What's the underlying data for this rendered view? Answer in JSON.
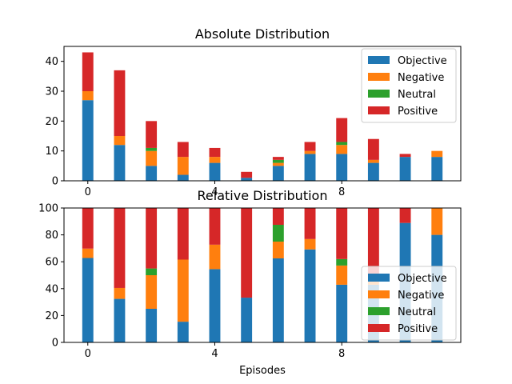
{
  "chart_data": [
    {
      "type": "bar",
      "stacked": true,
      "title": "Absolute Distribution",
      "xlabel": "",
      "ylabel": "",
      "ylim": [
        0,
        45
      ],
      "yticks": [
        0,
        10,
        20,
        30,
        40
      ],
      "xticks": [
        0,
        4,
        8
      ],
      "x": [
        0,
        1,
        2,
        3,
        4,
        5,
        6,
        7,
        8,
        9,
        10,
        11
      ],
      "legend_position": "top-right",
      "grid": false,
      "series": [
        {
          "name": "Objective",
          "color": "#1f77b4",
          "values": [
            27,
            12,
            5,
            2,
            6,
            1,
            5,
            9,
            9,
            6,
            8,
            8
          ]
        },
        {
          "name": "Negative",
          "color": "#ff7f0e",
          "values": [
            3,
            3,
            5,
            6,
            2,
            0,
            1,
            1,
            3,
            1,
            0,
            2
          ]
        },
        {
          "name": "Neutral",
          "color": "#2ca02c",
          "values": [
            0,
            0,
            1,
            0,
            0,
            0,
            1,
            0,
            1,
            0,
            0,
            0
          ]
        },
        {
          "name": "Positive",
          "color": "#d62728",
          "values": [
            13,
            22,
            9,
            5,
            3,
            2,
            1,
            3,
            8,
            7,
            1,
            0
          ]
        }
      ]
    },
    {
      "type": "bar",
      "stacked": true,
      "title": "Relative Distribution",
      "xlabel": "Episodes",
      "ylabel": "",
      "ylim": [
        0,
        100
      ],
      "yticks": [
        0,
        20,
        40,
        60,
        80,
        100
      ],
      "xticks": [
        0,
        4,
        8
      ],
      "x": [
        0,
        1,
        2,
        3,
        4,
        5,
        6,
        7,
        8,
        9,
        10,
        11
      ],
      "legend_position": "bottom-right",
      "grid": false,
      "series": [
        {
          "name": "Objective",
          "color": "#1f77b4",
          "values": [
            62.8,
            32.4,
            25,
            15.4,
            54.5,
            33.3,
            62.5,
            69.2,
            42.9,
            42.9,
            88.9,
            80
          ]
        },
        {
          "name": "Negative",
          "color": "#ff7f0e",
          "values": [
            7,
            8.1,
            25,
            46.2,
            18.2,
            0,
            12.5,
            7.7,
            14.3,
            7.1,
            0,
            20
          ]
        },
        {
          "name": "Neutral",
          "color": "#2ca02c",
          "values": [
            0,
            0,
            5,
            0,
            0,
            0,
            12.5,
            0,
            4.8,
            0,
            0,
            0
          ]
        },
        {
          "name": "Positive",
          "color": "#d62728",
          "values": [
            30.2,
            59.5,
            45,
            38.4,
            27.3,
            66.7,
            12.5,
            23.1,
            38,
            50,
            11.1,
            0
          ]
        }
      ]
    }
  ]
}
